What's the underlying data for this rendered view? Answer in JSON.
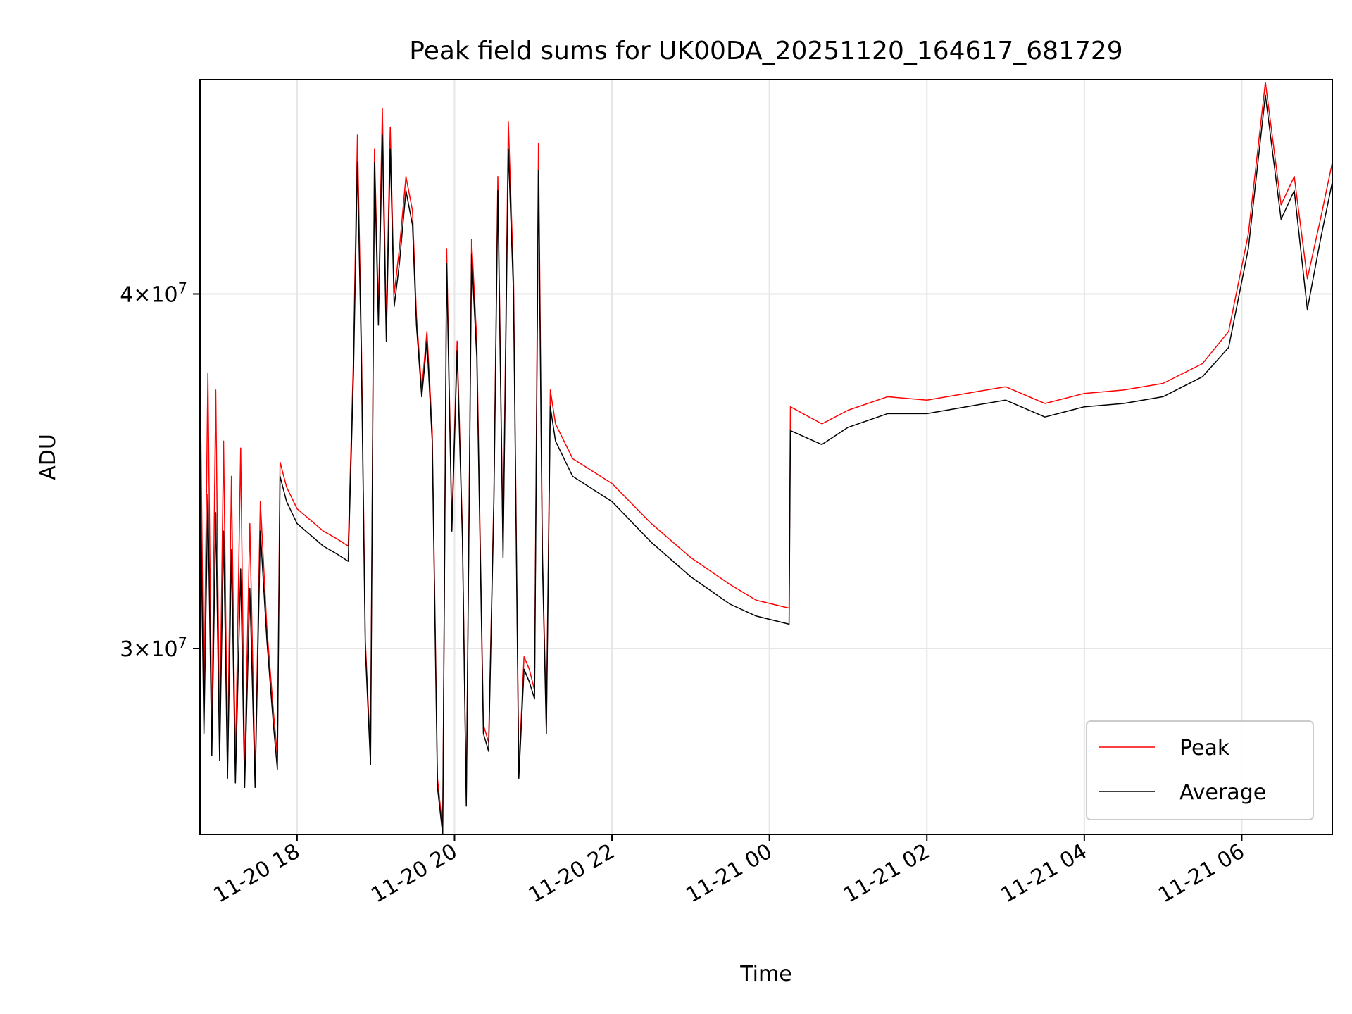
{
  "chart_data": {
    "type": "line",
    "title": "Peak field sums for UK00DA_20251120_164617_681729",
    "xlabel": "Time",
    "ylabel": "ADU",
    "yscale": "log",
    "grid": true,
    "legend_position": "lower-right",
    "xlim": [
      "2025-11-20T16:46",
      "2025-11-21T07:09"
    ],
    "ylim": [
      25800000,
      47600000
    ],
    "x_ticks": [
      {
        "time": "2025-11-20T18:00",
        "label": "11-20 18"
      },
      {
        "time": "2025-11-20T20:00",
        "label": "11-20 20"
      },
      {
        "time": "2025-11-20T22:00",
        "label": "11-20 22"
      },
      {
        "time": "2025-11-21T00:00",
        "label": "11-21 00"
      },
      {
        "time": "2025-11-21T02:00",
        "label": "11-21 02"
      },
      {
        "time": "2025-11-21T04:00",
        "label": "11-21 04"
      },
      {
        "time": "2025-11-21T06:00",
        "label": "11-21 06"
      }
    ],
    "y_ticks": [
      {
        "value": 30000000,
        "mantissa": "3",
        "base": "10",
        "exponent": "7"
      },
      {
        "value": 40000000,
        "mantissa": "4",
        "base": "10",
        "exponent": "7"
      }
    ],
    "series": [
      {
        "name": "Peak",
        "color": "#ff0000",
        "points": [
          [
            "2025-11-20T16:46",
            38000000
          ],
          [
            "2025-11-20T16:49",
            28500000
          ],
          [
            "2025-11-20T16:52",
            37500000
          ],
          [
            "2025-11-20T16:55",
            28000000
          ],
          [
            "2025-11-20T16:58",
            37000000
          ],
          [
            "2025-11-20T17:01",
            27800000
          ],
          [
            "2025-11-20T17:04",
            35500000
          ],
          [
            "2025-11-20T17:07",
            27400000
          ],
          [
            "2025-11-20T17:10",
            34500000
          ],
          [
            "2025-11-20T17:13",
            27200000
          ],
          [
            "2025-11-20T17:17",
            35300000
          ],
          [
            "2025-11-20T17:20",
            27100000
          ],
          [
            "2025-11-20T17:24",
            33200000
          ],
          [
            "2025-11-20T17:28",
            27000000
          ],
          [
            "2025-11-20T17:32",
            33800000
          ],
          [
            "2025-11-20T17:37",
            30500000
          ],
          [
            "2025-11-20T17:42",
            28500000
          ],
          [
            "2025-11-20T17:45",
            27500000
          ],
          [
            "2025-11-20T17:47",
            34900000
          ],
          [
            "2025-11-20T17:52",
            34200000
          ],
          [
            "2025-11-20T18:00",
            33600000
          ],
          [
            "2025-11-20T18:10",
            33300000
          ],
          [
            "2025-11-20T18:20",
            33000000
          ],
          [
            "2025-11-20T18:30",
            32800000
          ],
          [
            "2025-11-20T18:39",
            32600000
          ],
          [
            "2025-11-20T18:43",
            38000000
          ],
          [
            "2025-11-20T18:46",
            45500000
          ],
          [
            "2025-11-20T18:49",
            38500000
          ],
          [
            "2025-11-20T18:52",
            30200000
          ],
          [
            "2025-11-20T18:56",
            27500000
          ],
          [
            "2025-11-20T18:59",
            45000000
          ],
          [
            "2025-11-20T19:02",
            39500000
          ],
          [
            "2025-11-20T19:05",
            46500000
          ],
          [
            "2025-11-20T19:08",
            39000000
          ],
          [
            "2025-11-20T19:11",
            45800000
          ],
          [
            "2025-11-20T19:14",
            40000000
          ],
          [
            "2025-11-20T19:18",
            41500000
          ],
          [
            "2025-11-20T19:23",
            44000000
          ],
          [
            "2025-11-20T19:28",
            42800000
          ],
          [
            "2025-11-20T19:31",
            39300000
          ],
          [
            "2025-11-20T19:35",
            37000000
          ],
          [
            "2025-11-20T19:39",
            38800000
          ],
          [
            "2025-11-20T19:43",
            35800000
          ],
          [
            "2025-11-20T19:47",
            27000000
          ],
          [
            "2025-11-20T19:51",
            25900000
          ],
          [
            "2025-11-20T19:54",
            41500000
          ],
          [
            "2025-11-20T19:58",
            33200000
          ],
          [
            "2025-11-20T20:02",
            38500000
          ],
          [
            "2025-11-20T20:06",
            33000000
          ],
          [
            "2025-11-20T20:09",
            26500000
          ],
          [
            "2025-11-20T20:13",
            41800000
          ],
          [
            "2025-11-20T20:17",
            38500000
          ],
          [
            "2025-11-20T20:22",
            28200000
          ],
          [
            "2025-11-20T20:26",
            27800000
          ],
          [
            "2025-11-20T20:30",
            34000000
          ],
          [
            "2025-11-20T20:33",
            44000000
          ],
          [
            "2025-11-20T20:37",
            32500000
          ],
          [
            "2025-11-20T20:41",
            46000000
          ],
          [
            "2025-11-20T20:45",
            40500000
          ],
          [
            "2025-11-20T20:49",
            27200000
          ],
          [
            "2025-11-20T20:53",
            29800000
          ],
          [
            "2025-11-20T20:57",
            29500000
          ],
          [
            "2025-11-20T21:01",
            29000000
          ],
          [
            "2025-11-20T21:04",
            45200000
          ],
          [
            "2025-11-20T21:07",
            32500000
          ],
          [
            "2025-11-20T21:10",
            28200000
          ],
          [
            "2025-11-20T21:13",
            37000000
          ],
          [
            "2025-11-20T21:17",
            36000000
          ],
          [
            "2025-11-20T21:30",
            35000000
          ],
          [
            "2025-11-20T22:00",
            34300000
          ],
          [
            "2025-11-20T22:30",
            33200000
          ],
          [
            "2025-11-20T23:00",
            32300000
          ],
          [
            "2025-11-20T23:30",
            31600000
          ],
          [
            "2025-11-20T23:50",
            31200000
          ],
          [
            "2025-11-21T00:15",
            31000000
          ],
          [
            "2025-11-21T00:16",
            36500000
          ],
          [
            "2025-11-21T00:40",
            36000000
          ],
          [
            "2025-11-21T01:00",
            36400000
          ],
          [
            "2025-11-21T01:30",
            36800000
          ],
          [
            "2025-11-21T02:00",
            36700000
          ],
          [
            "2025-11-21T02:30",
            36900000
          ],
          [
            "2025-11-21T03:00",
            37100000
          ],
          [
            "2025-11-21T03:30",
            36600000
          ],
          [
            "2025-11-21T04:00",
            36900000
          ],
          [
            "2025-11-21T04:30",
            37000000
          ],
          [
            "2025-11-21T05:00",
            37200000
          ],
          [
            "2025-11-21T05:30",
            37800000
          ],
          [
            "2025-11-21T05:50",
            38800000
          ],
          [
            "2025-11-21T06:05",
            42000000
          ],
          [
            "2025-11-21T06:18",
            47500000
          ],
          [
            "2025-11-21T06:30",
            43000000
          ],
          [
            "2025-11-21T06:40",
            44000000
          ],
          [
            "2025-11-21T06:50",
            40500000
          ],
          [
            "2025-11-21T07:00",
            42500000
          ],
          [
            "2025-11-21T07:09",
            44500000
          ]
        ]
      },
      {
        "name": "Average",
        "color": "#000000",
        "points": [
          [
            "2025-11-20T16:46",
            35000000
          ],
          [
            "2025-11-20T16:49",
            28000000
          ],
          [
            "2025-11-20T16:52",
            34000000
          ],
          [
            "2025-11-20T16:55",
            27500000
          ],
          [
            "2025-11-20T16:58",
            33500000
          ],
          [
            "2025-11-20T17:01",
            27400000
          ],
          [
            "2025-11-20T17:04",
            33000000
          ],
          [
            "2025-11-20T17:07",
            27000000
          ],
          [
            "2025-11-20T17:10",
            32500000
          ],
          [
            "2025-11-20T17:13",
            26900000
          ],
          [
            "2025-11-20T17:17",
            32000000
          ],
          [
            "2025-11-20T17:20",
            26800000
          ],
          [
            "2025-11-20T17:24",
            31500000
          ],
          [
            "2025-11-20T17:28",
            26800000
          ],
          [
            "2025-11-20T17:32",
            33000000
          ],
          [
            "2025-11-20T17:37",
            30200000
          ],
          [
            "2025-11-20T17:42",
            28200000
          ],
          [
            "2025-11-20T17:45",
            27200000
          ],
          [
            "2025-11-20T17:47",
            34500000
          ],
          [
            "2025-11-20T17:52",
            33800000
          ],
          [
            "2025-11-20T18:00",
            33200000
          ],
          [
            "2025-11-20T18:10",
            32900000
          ],
          [
            "2025-11-20T18:20",
            32600000
          ],
          [
            "2025-11-20T18:30",
            32400000
          ],
          [
            "2025-11-20T18:39",
            32200000
          ],
          [
            "2025-11-20T18:43",
            37500000
          ],
          [
            "2025-11-20T18:46",
            44500000
          ],
          [
            "2025-11-20T18:49",
            38000000
          ],
          [
            "2025-11-20T18:52",
            30000000
          ],
          [
            "2025-11-20T18:56",
            27300000
          ],
          [
            "2025-11-20T18:59",
            44500000
          ],
          [
            "2025-11-20T19:02",
            39000000
          ],
          [
            "2025-11-20T19:05",
            45500000
          ],
          [
            "2025-11-20T19:08",
            38500000
          ],
          [
            "2025-11-20T19:11",
            45000000
          ],
          [
            "2025-11-20T19:14",
            39600000
          ],
          [
            "2025-11-20T19:18",
            41000000
          ],
          [
            "2025-11-20T19:23",
            43500000
          ],
          [
            "2025-11-20T19:28",
            42300000
          ],
          [
            "2025-11-20T19:31",
            39000000
          ],
          [
            "2025-11-20T19:35",
            36800000
          ],
          [
            "2025-11-20T19:39",
            38500000
          ],
          [
            "2025-11-20T19:43",
            35500000
          ],
          [
            "2025-11-20T19:47",
            26800000
          ],
          [
            "2025-11-20T19:51",
            25800000
          ],
          [
            "2025-11-20T19:54",
            41000000
          ],
          [
            "2025-11-20T19:58",
            33000000
          ],
          [
            "2025-11-20T20:02",
            38200000
          ],
          [
            "2025-11-20T20:06",
            32800000
          ],
          [
            "2025-11-20T20:09",
            26400000
          ],
          [
            "2025-11-20T20:13",
            41300000
          ],
          [
            "2025-11-20T20:17",
            38000000
          ],
          [
            "2025-11-20T20:22",
            28000000
          ],
          [
            "2025-11-20T20:26",
            27600000
          ],
          [
            "2025-11-20T20:30",
            33800000
          ],
          [
            "2025-11-20T20:33",
            43500000
          ],
          [
            "2025-11-20T20:37",
            32300000
          ],
          [
            "2025-11-20T20:41",
            45000000
          ],
          [
            "2025-11-20T20:45",
            40000000
          ],
          [
            "2025-11-20T20:49",
            27000000
          ],
          [
            "2025-11-20T20:53",
            29500000
          ],
          [
            "2025-11-20T20:57",
            29200000
          ],
          [
            "2025-11-20T21:01",
            28800000
          ],
          [
            "2025-11-20T21:04",
            44200000
          ],
          [
            "2025-11-20T21:07",
            32200000
          ],
          [
            "2025-11-20T21:10",
            28000000
          ],
          [
            "2025-11-20T21:13",
            36500000
          ],
          [
            "2025-11-20T21:17",
            35500000
          ],
          [
            "2025-11-20T21:30",
            34500000
          ],
          [
            "2025-11-20T22:00",
            33800000
          ],
          [
            "2025-11-20T22:30",
            32700000
          ],
          [
            "2025-11-20T23:00",
            31800000
          ],
          [
            "2025-11-20T23:30",
            31100000
          ],
          [
            "2025-11-20T23:50",
            30800000
          ],
          [
            "2025-11-21T00:15",
            30600000
          ],
          [
            "2025-11-21T00:16",
            35800000
          ],
          [
            "2025-11-21T00:40",
            35400000
          ],
          [
            "2025-11-21T01:00",
            35900000
          ],
          [
            "2025-11-21T01:30",
            36300000
          ],
          [
            "2025-11-21T02:00",
            36300000
          ],
          [
            "2025-11-21T02:30",
            36500000
          ],
          [
            "2025-11-21T03:00",
            36700000
          ],
          [
            "2025-11-21T03:30",
            36200000
          ],
          [
            "2025-11-21T04:00",
            36500000
          ],
          [
            "2025-11-21T04:30",
            36600000
          ],
          [
            "2025-11-21T05:00",
            36800000
          ],
          [
            "2025-11-21T05:30",
            37400000
          ],
          [
            "2025-11-21T05:50",
            38300000
          ],
          [
            "2025-11-21T06:05",
            41500000
          ],
          [
            "2025-11-21T06:18",
            47000000
          ],
          [
            "2025-11-21T06:30",
            42500000
          ],
          [
            "2025-11-21T06:40",
            43500000
          ],
          [
            "2025-11-21T06:50",
            39500000
          ],
          [
            "2025-11-21T07:00",
            41800000
          ],
          [
            "2025-11-21T07:09",
            43800000
          ]
        ]
      }
    ]
  }
}
